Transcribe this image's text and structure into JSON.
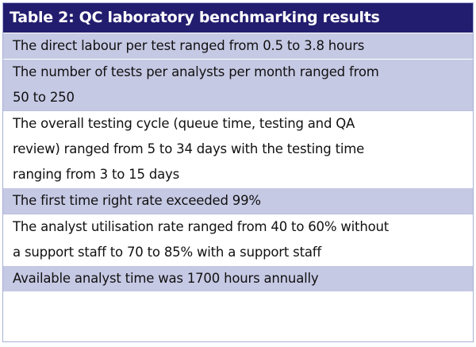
{
  "table": {
    "title": "Table 2: QC laboratory benchmarking results",
    "rows": [
      {
        "lines": [
          "The direct labour per test ranged from 0.5 to 3.8 hours"
        ]
      },
      {
        "lines": [
          "The number of tests per analysts per month ranged from",
          "50 to 250"
        ]
      },
      {
        "lines": [
          "The overall testing cycle (queue time, testing and QA",
          "review) ranged from 5 to 34 days with the testing time",
          "ranging from 3 to 15 days"
        ]
      },
      {
        "lines": [
          "The first time right rate exceeded 99%"
        ]
      },
      {
        "lines": [
          "The analyst utilisation rate ranged from 40 to 60% without",
          "a support staff to 70 to 85% with a support staff"
        ]
      },
      {
        "lines": [
          "Available analyst time was 1700 hours annually"
        ]
      }
    ],
    "colors": {
      "title_bg": "#231d6f",
      "title_text": "#ffffff",
      "shaded_row_bg": "#c6c9e4",
      "plain_row_bg": "#ffffff"
    }
  }
}
